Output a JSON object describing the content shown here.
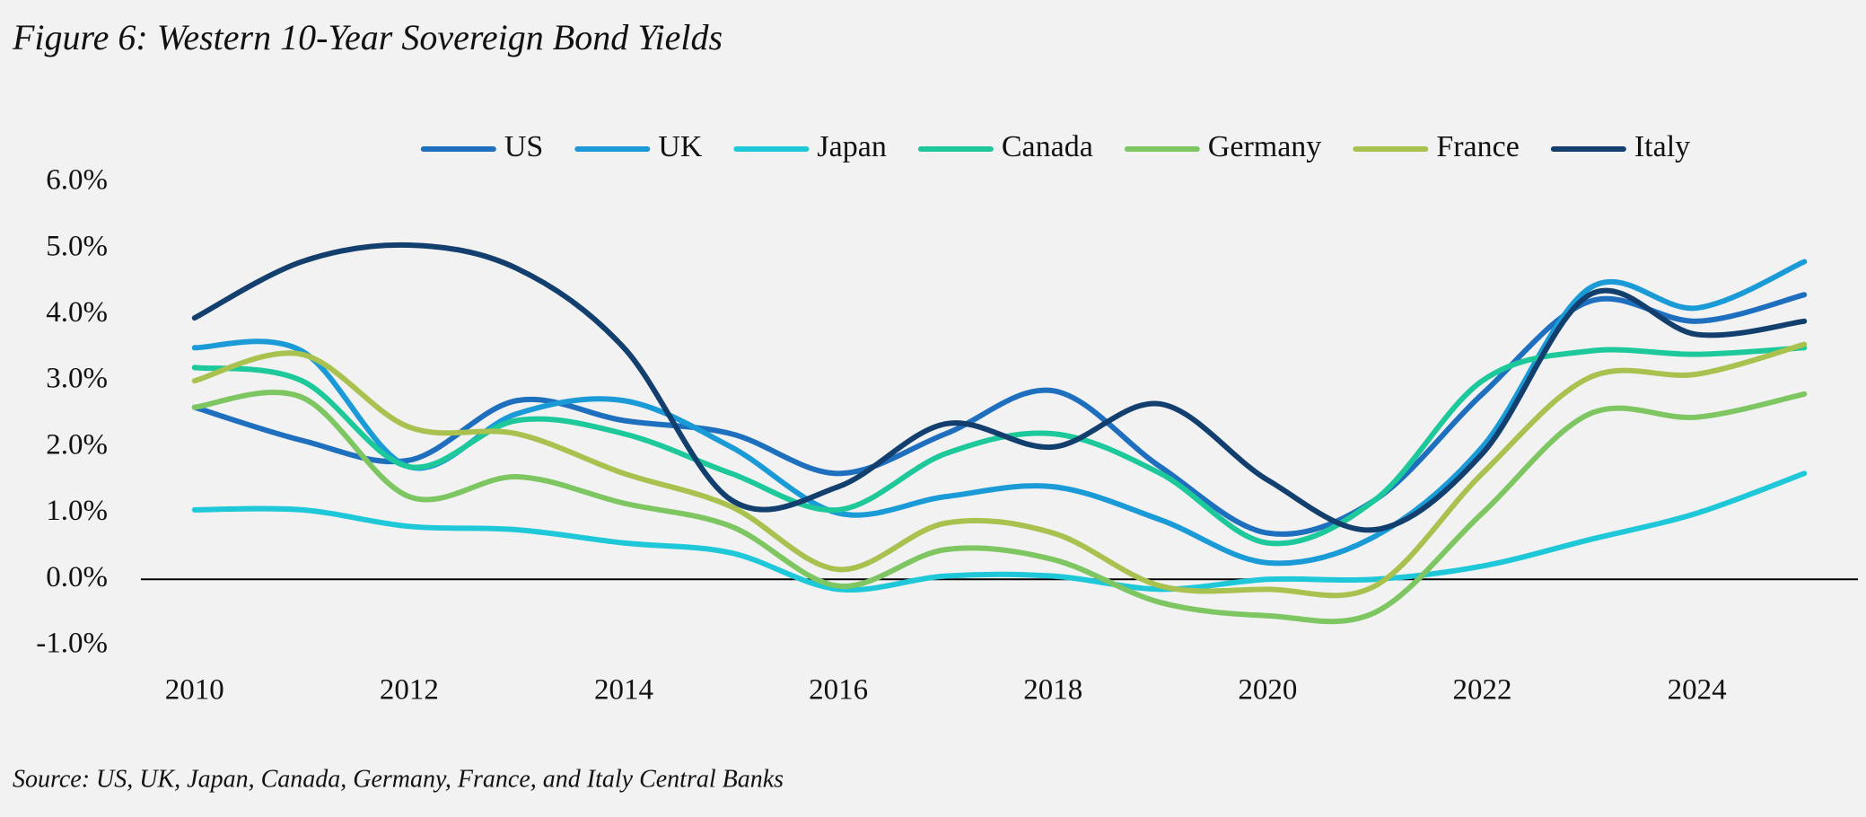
{
  "chart_data": {
    "type": "line",
    "title": "Figure 6: Western 10-Year Sovereign Bond Yields",
    "source": "Source: US, UK, Japan, Canada, Germany, France, and Italy Central Banks",
    "x": [
      2010,
      2011,
      2012,
      2013,
      2014,
      2015,
      2016,
      2017,
      2018,
      2019,
      2020,
      2021,
      2022,
      2023,
      2024,
      2025
    ],
    "series": [
      {
        "name": "US",
        "color": "#1f6fbf",
        "values": [
          2.6,
          2.1,
          1.8,
          2.7,
          2.4,
          2.2,
          1.6,
          2.2,
          2.85,
          1.7,
          0.7,
          1.2,
          2.8,
          4.2,
          3.9,
          4.3
        ]
      },
      {
        "name": "UK",
        "color": "#1a9ad6",
        "values": [
          3.5,
          3.45,
          1.7,
          2.5,
          2.7,
          2.0,
          1.0,
          1.25,
          1.4,
          0.9,
          0.25,
          0.65,
          2.0,
          4.4,
          4.1,
          4.8
        ]
      },
      {
        "name": "Japan",
        "color": "#1ec8d8",
        "values": [
          1.05,
          1.05,
          0.8,
          0.75,
          0.55,
          0.4,
          -0.15,
          0.05,
          0.05,
          -0.15,
          0.0,
          0.0,
          0.2,
          0.6,
          1.0,
          1.6
        ]
      },
      {
        "name": "Canada",
        "color": "#1dc99a",
        "values": [
          3.2,
          3.0,
          1.7,
          2.4,
          2.2,
          1.6,
          1.05,
          1.9,
          2.2,
          1.6,
          0.55,
          1.2,
          3.0,
          3.45,
          3.4,
          3.5
        ]
      },
      {
        "name": "Germany",
        "color": "#7dc661",
        "values": [
          2.6,
          2.75,
          1.25,
          1.55,
          1.15,
          0.8,
          -0.1,
          0.45,
          0.3,
          -0.35,
          -0.55,
          -0.5,
          1.0,
          2.5,
          2.45,
          2.8
        ]
      },
      {
        "name": "France",
        "color": "#a9c14e",
        "values": [
          3.0,
          3.4,
          2.3,
          2.2,
          1.6,
          1.1,
          0.15,
          0.85,
          0.7,
          -0.1,
          -0.15,
          -0.1,
          1.6,
          3.05,
          3.1,
          3.55
        ]
      },
      {
        "name": "Italy",
        "color": "#123f6e",
        "values": [
          3.95,
          4.8,
          5.05,
          4.7,
          3.5,
          1.2,
          1.4,
          2.35,
          2.0,
          2.65,
          1.5,
          0.75,
          1.9,
          4.3,
          3.7,
          3.9
        ]
      }
    ],
    "xlim": [
      2009.5,
      2025.5
    ],
    "xticks": [
      2010,
      2012,
      2014,
      2016,
      2018,
      2020,
      2022,
      2024
    ],
    "ylim": [
      -1,
      6
    ],
    "yticks": [
      {
        "value": -1,
        "label": "-1.0%"
      },
      {
        "value": 0,
        "label": "0.0%"
      },
      {
        "value": 1,
        "label": "1.0%"
      },
      {
        "value": 2,
        "label": "2.0%"
      },
      {
        "value": 3,
        "label": "3.0%"
      },
      {
        "value": 4,
        "label": "4.0%"
      },
      {
        "value": 5,
        "label": "5.0%"
      },
      {
        "value": 6,
        "label": "6.0%"
      }
    ],
    "legend": "top",
    "grid": false,
    "smooth": true
  }
}
